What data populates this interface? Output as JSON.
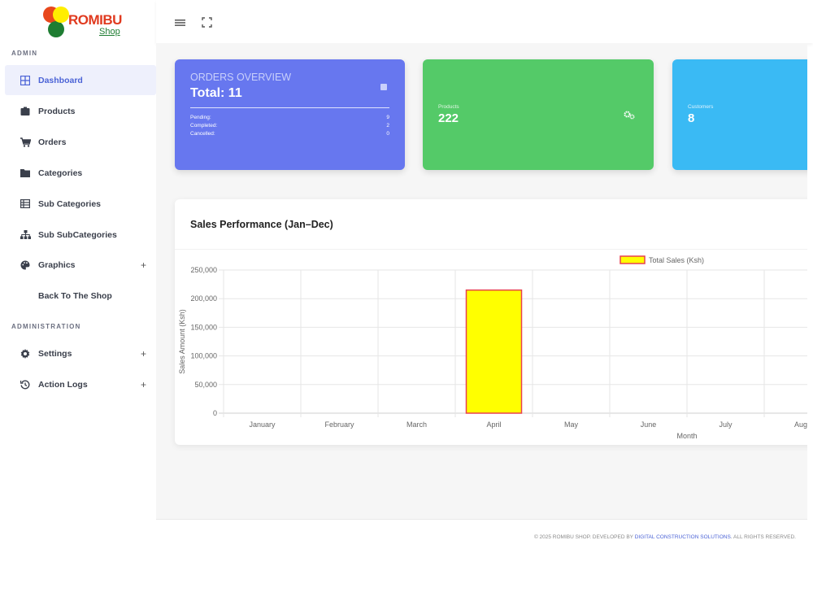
{
  "brand": {
    "name": "ROMIBU",
    "sub": "Shop"
  },
  "sidebar": {
    "section_admin": "ADMIN",
    "section_administration": "ADMINISTRATION",
    "items": [
      {
        "label": "Dashboard"
      },
      {
        "label": "Products"
      },
      {
        "label": "Orders"
      },
      {
        "label": "Categories"
      },
      {
        "label": "Sub Categories"
      },
      {
        "label": "Sub SubCategories"
      },
      {
        "label": "Graphics",
        "expand": "+"
      },
      {
        "label": "Back To The Shop"
      },
      {
        "label": "Settings",
        "expand": "+"
      },
      {
        "label": "Action Logs",
        "expand": "+"
      }
    ]
  },
  "cards": {
    "orders": {
      "title": "ORDERS OVERVIEW",
      "total": "Total: 11",
      "pending_label": "Pending:",
      "pending": "9",
      "completed_label": "Completed:",
      "completed": "2",
      "cancelled_label": "Cancelled:",
      "cancelled": "0",
      "color": "#6777ef"
    },
    "products": {
      "label": "Products",
      "value": "222",
      "color": "#54ca68"
    },
    "customers": {
      "label": "Customers",
      "value": "8",
      "color": "#3abaf4"
    }
  },
  "chart": {
    "heading": "Sales Performance (Jan–Dec)"
  },
  "chart_data": {
    "type": "bar",
    "categories": [
      "January",
      "February",
      "March",
      "April",
      "May",
      "June",
      "July",
      "Augu"
    ],
    "series": [
      {
        "name": "Total Sales (Ksh)",
        "values": [
          0,
          0,
          0,
          215000,
          0,
          0,
          0,
          0
        ]
      }
    ],
    "yticks": [
      "0",
      "50,000",
      "100,000",
      "150,000",
      "200,000",
      "250,000"
    ],
    "xlabel": "Month",
    "ylabel": "Sales Amount (Ksh)",
    "ylim": [
      0,
      250000
    ],
    "grid": true,
    "legend": "top",
    "bar_fill": "#ffff00",
    "bar_border": "#e8414f"
  },
  "footer": {
    "prefix": "© 2025 ROMIBU SHOP. DEVELOPED BY ",
    "link": "DIGITAL CONSTRUCTION SOLUTIONS",
    "suffix": ". ALL RIGHTS RESERVED."
  }
}
